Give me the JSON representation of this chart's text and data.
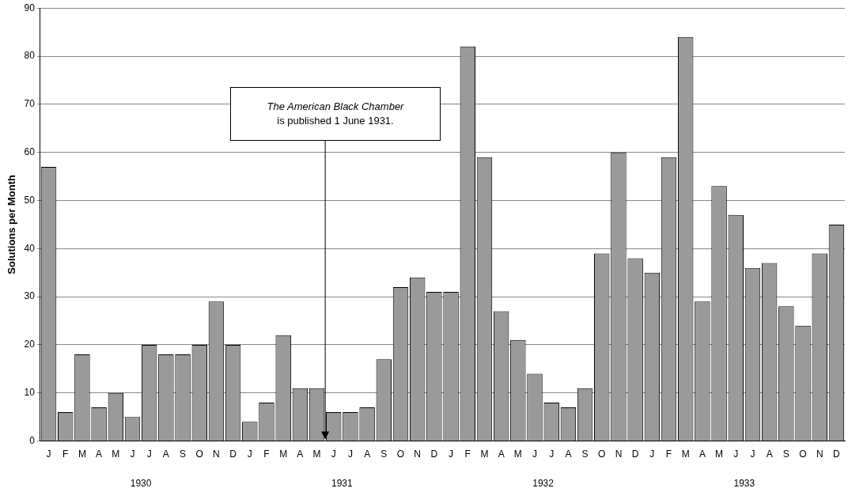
{
  "chart_data": {
    "type": "bar",
    "ylabel": "Solutions per Month",
    "categories": [
      "J",
      "F",
      "M",
      "A",
      "M",
      "J",
      "J",
      "A",
      "S",
      "O",
      "N",
      "D",
      "J",
      "F",
      "M",
      "A",
      "M",
      "J",
      "J",
      "A",
      "S",
      "O",
      "N",
      "D",
      "J",
      "F",
      "M",
      "A",
      "M",
      "J",
      "J",
      "A",
      "S",
      "O",
      "N",
      "D",
      "J",
      "F",
      "M",
      "A",
      "M",
      "J",
      "J",
      "A",
      "S",
      "O",
      "N",
      "D"
    ],
    "values": [
      57,
      6,
      18,
      7,
      10,
      5,
      20,
      18,
      18,
      20,
      29,
      20,
      4,
      8,
      22,
      11,
      11,
      6,
      6,
      7,
      17,
      32,
      34,
      31,
      31,
      82,
      59,
      27,
      21,
      14,
      8,
      7,
      11,
      39,
      60,
      38,
      35,
      59,
      84,
      29,
      53,
      47,
      36,
      37,
      28,
      24,
      39,
      45
    ],
    "color": "#9a9a9a",
    "ylim": [
      0,
      90
    ],
    "yticks": [
      0,
      10,
      20,
      30,
      40,
      50,
      60,
      70,
      80,
      90
    ],
    "grid": "y",
    "annotations": [
      "The American Black Chamber\nis published 1 June 1931.",
      "1930",
      "1931",
      "1932",
      "1933"
    ]
  }
}
